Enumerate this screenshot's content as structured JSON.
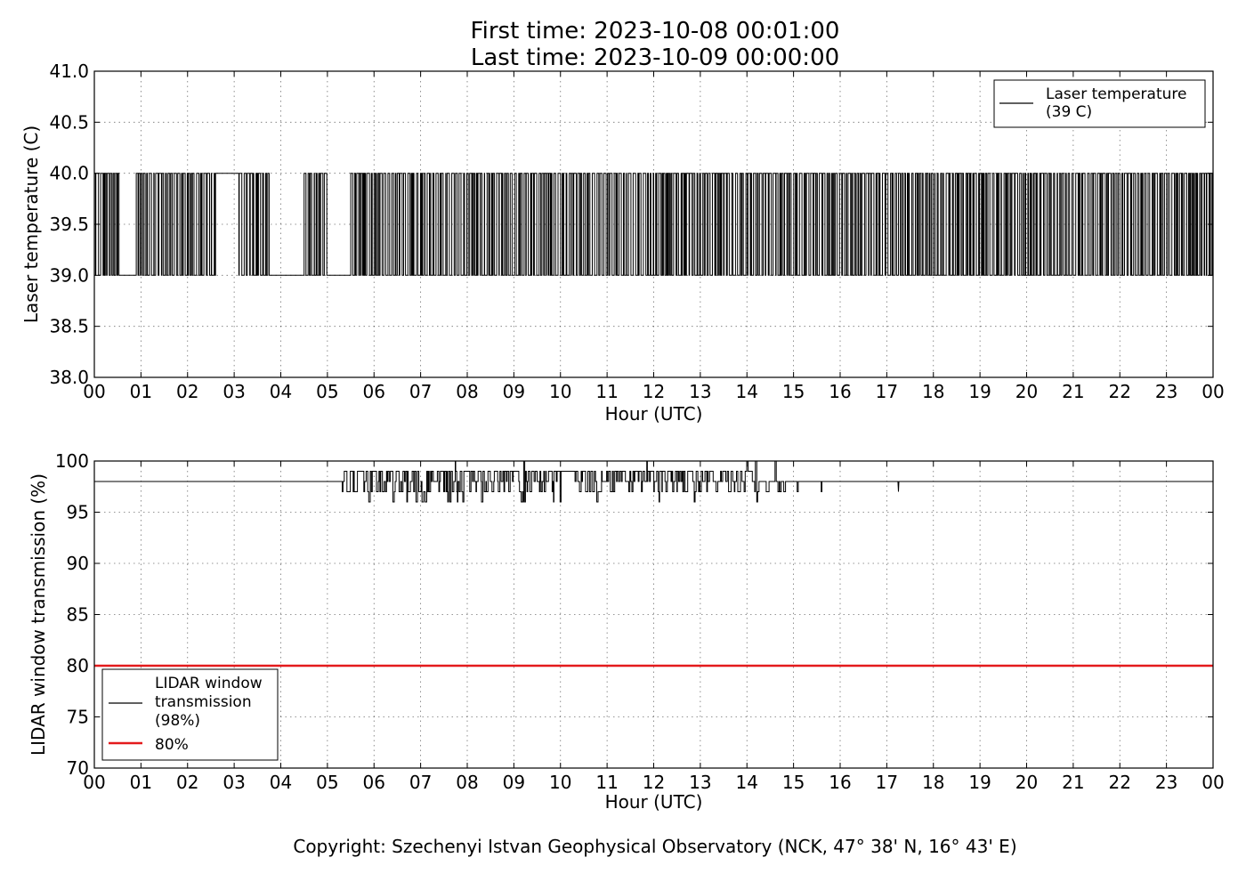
{
  "title": {
    "line1": "First time: 2023-10-08 00:01:00",
    "line2": "Last time: 2023-10-09 00:00:00"
  },
  "copyright": "Copyright: Szechenyi Istvan Geophysical Observatory (NCK, 47° 38' N, 16° 43' E)",
  "colors": {
    "series": "#000000",
    "threshold": "#e41a1c",
    "background": "#ffffff"
  },
  "chart_data": [
    {
      "type": "line",
      "xlabel": "Hour (UTC)",
      "ylabel": "Laser temperature (C)",
      "xlim": [
        0,
        24
      ],
      "ylim": [
        38.0,
        41.0
      ],
      "xticks": [
        "00",
        "01",
        "02",
        "03",
        "04",
        "05",
        "06",
        "07",
        "08",
        "09",
        "10",
        "11",
        "12",
        "13",
        "14",
        "15",
        "16",
        "17",
        "18",
        "19",
        "20",
        "21",
        "22",
        "23",
        "00"
      ],
      "yticks": [
        "38.0",
        "38.5",
        "39.0",
        "39.5",
        "40.0",
        "40.5",
        "41.0"
      ],
      "grid": true,
      "legend_position": "top-right",
      "series": [
        {
          "name": "Laser temperature\n(39 C)",
          "legend_lines": [
            "Laser temperature",
            "(39 C)"
          ],
          "color": "#000000",
          "description_values": [
            39.0,
            40.0
          ],
          "segments": [
            {
              "x": [
                0.0,
                0.55
              ],
              "pattern": "toggle",
              "low": 39.0,
              "high": 40.0
            },
            {
              "x": [
                0.55,
                0.9
              ],
              "pattern": "flat",
              "value": 39.0
            },
            {
              "x": [
                0.9,
                2.6
              ],
              "pattern": "toggle",
              "low": 39.0,
              "high": 40.0
            },
            {
              "x": [
                2.6,
                3.1
              ],
              "pattern": "flat",
              "value": 40.0
            },
            {
              "x": [
                3.1,
                3.75
              ],
              "pattern": "toggle",
              "low": 39.0,
              "high": 40.0
            },
            {
              "x": [
                3.75,
                4.5
              ],
              "pattern": "flat",
              "value": 39.0
            },
            {
              "x": [
                4.5,
                5.0
              ],
              "pattern": "toggle",
              "low": 39.0,
              "high": 40.0
            },
            {
              "x": [
                5.0,
                5.5
              ],
              "pattern": "flat",
              "value": 39.0
            },
            {
              "x": [
                5.5,
                24.0
              ],
              "pattern": "toggle",
              "low": 39.0,
              "high": 40.0
            }
          ]
        }
      ]
    },
    {
      "type": "line",
      "xlabel": "Hour (UTC)",
      "ylabel": "LIDAR window transmission (%)",
      "xlim": [
        0,
        24
      ],
      "ylim": [
        70,
        100
      ],
      "xticks": [
        "00",
        "01",
        "02",
        "03",
        "04",
        "05",
        "06",
        "07",
        "08",
        "09",
        "10",
        "11",
        "12",
        "13",
        "14",
        "15",
        "16",
        "17",
        "18",
        "19",
        "20",
        "21",
        "22",
        "23",
        "00"
      ],
      "yticks": [
        "70",
        "75",
        "80",
        "85",
        "90",
        "95",
        "100"
      ],
      "grid": true,
      "legend_position": "bottom-left",
      "series": [
        {
          "name": "LIDAR window\ntransmission\n(98%)",
          "legend_lines": [
            "LIDAR window",
            "transmission",
            "(98%)"
          ],
          "color": "#000000",
          "baseline": 98,
          "noisy_range": [
            5.3,
            15.65
          ],
          "noise_values": [
            96,
            97,
            98,
            99,
            100
          ],
          "spikes": [
            {
              "x": 17.25,
              "value": 97
            }
          ]
        },
        {
          "name": "80%",
          "legend_lines": [
            "80%"
          ],
          "color": "#e41a1c",
          "constant": 80
        }
      ]
    }
  ]
}
